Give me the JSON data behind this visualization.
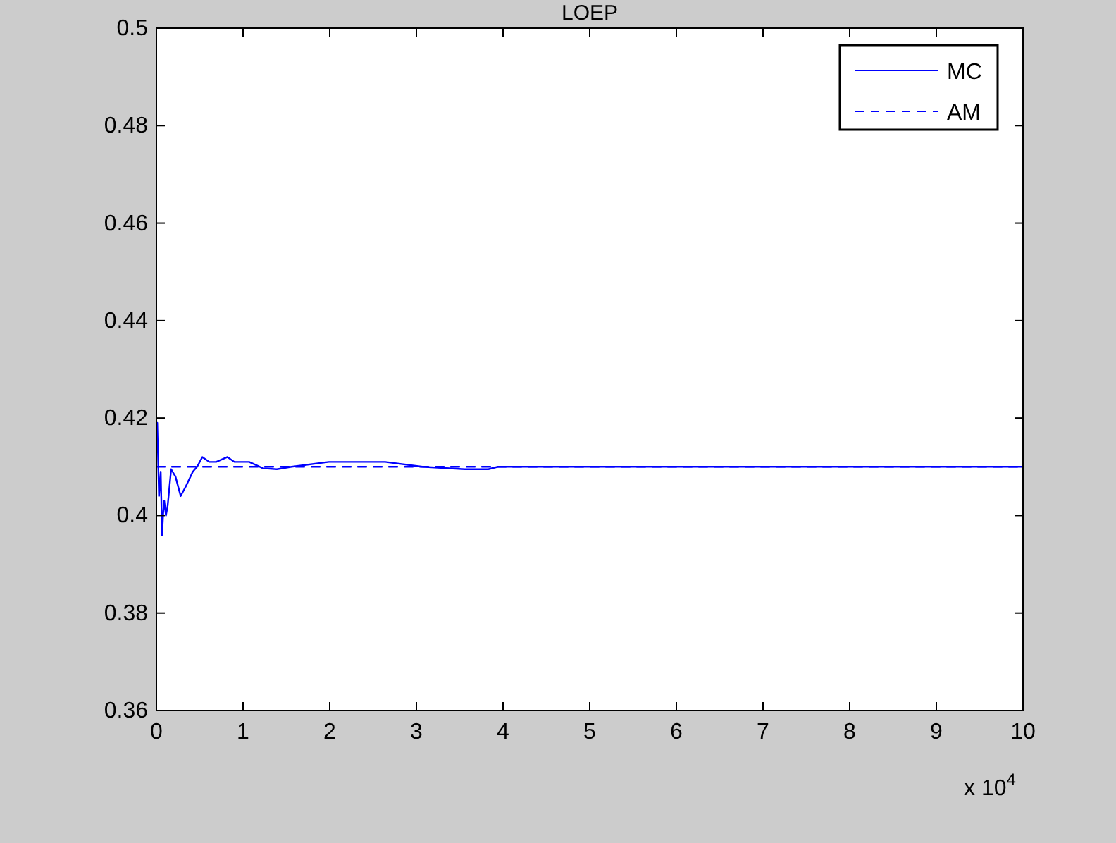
{
  "chart_data": {
    "type": "line",
    "title": "LOEP",
    "xlim": [
      0,
      10
    ],
    "ylim": [
      0.36,
      0.5
    ],
    "xticks": [
      0,
      1,
      2,
      3,
      4,
      5,
      6,
      7,
      8,
      9,
      10
    ],
    "yticks": [
      0.36,
      0.38,
      {
        "value": 0.4,
        "label": "0.4"
      },
      0.42,
      0.44,
      0.46,
      0.48,
      {
        "value": 0.5,
        "label": "0.5"
      }
    ],
    "annotations": [
      "x 10$^{4}$"
    ],
    "legend": "top right",
    "grid": false,
    "series": [
      {
        "name": "MC",
        "color": "#0000ff",
        "line_style": "solid",
        "x": [
          0.01,
          0.03,
          0.05,
          0.065,
          0.08,
          0.09,
          0.11,
          0.13,
          0.17,
          0.22,
          0.28,
          0.34,
          0.42,
          0.47,
          0.53,
          0.61,
          0.69,
          0.82,
          0.9,
          1.07,
          1.23,
          1.39,
          1.56,
          1.99,
          2.31,
          2.64,
          3.07,
          3.56,
          3.83,
          3.94,
          5,
          7,
          10
        ],
        "values": [
          0.419,
          0.404,
          0.409,
          0.396,
          0.401,
          0.403,
          0.4,
          0.402,
          0.4095,
          0.408,
          0.404,
          0.406,
          0.409,
          0.41,
          0.412,
          0.411,
          0.411,
          0.412,
          0.411,
          0.411,
          0.4097,
          0.4095,
          0.41,
          0.411,
          0.411,
          0.411,
          0.41,
          0.4095,
          0.4095,
          0.41,
          0.41,
          0.41,
          0.41
        ]
      },
      {
        "name": "AM",
        "color": "#0000ff",
        "line_style": "dashed",
        "x": [
          0,
          10
        ],
        "values": [
          0.41,
          0.41
        ]
      }
    ]
  }
}
